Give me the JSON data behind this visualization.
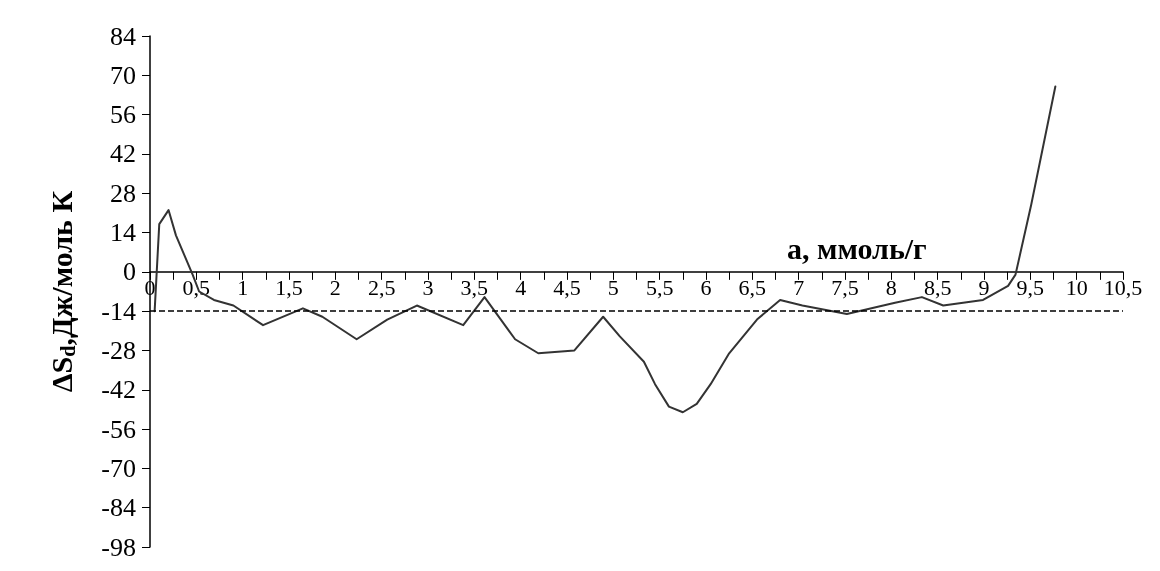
{
  "chart_data": {
    "type": "line",
    "xlabel": "a, ммоль/г",
    "ylabel": "ΔS$_{d}$,Дж/моль К",
    "x": [
      0.05,
      0.1,
      0.2,
      0.28,
      0.46,
      0.53,
      0.69,
      0.9,
      1.22,
      1.65,
      1.86,
      2.23,
      2.56,
      2.88,
      3.38,
      3.61,
      3.94,
      4.19,
      4.58,
      4.89,
      5.07,
      5.33,
      5.45,
      5.6,
      5.75,
      5.9,
      6.05,
      6.25,
      6.55,
      6.8,
      7.04,
      7.52,
      8.04,
      8.33,
      8.56,
      8.99,
      9.26,
      9.34,
      9.51,
      9.77
    ],
    "series": [
      {
        "color": "#333333",
        "values": [
          -14,
          17,
          22,
          13,
          -1,
          -7,
          -10,
          -12,
          -19,
          -13,
          -16,
          -24,
          -17,
          -12,
          -19,
          -9,
          -24,
          -29,
          -28,
          -16,
          -23,
          -32,
          -40,
          -48,
          -50,
          -47,
          -40,
          -29,
          -17,
          -10,
          -12,
          -15,
          -11,
          -9,
          -12,
          -10,
          -5,
          -1,
          24,
          66
        ]
      }
    ],
    "xlim": [
      0,
      10.5
    ],
    "xticks": [
      0,
      {
        "value": 0.25,
        "label": null
      },
      {
        "value": 0.5,
        "label": "0,5"
      },
      {
        "value": 0.75,
        "label": null
      },
      1,
      {
        "value": 1.25,
        "label": null
      },
      {
        "value": 1.5,
        "label": "1,5"
      },
      {
        "value": 1.75,
        "label": null
      },
      2,
      {
        "value": 2.25,
        "label": null
      },
      {
        "value": 2.5,
        "label": "2,5"
      },
      {
        "value": 2.75,
        "label": null
      },
      3,
      {
        "value": 3.25,
        "label": null
      },
      {
        "value": 3.5,
        "label": "3,5"
      },
      {
        "value": 3.75,
        "label": null
      },
      4,
      {
        "value": 4.25,
        "label": null
      },
      {
        "value": 4.5,
        "label": "4,5"
      },
      {
        "value": 4.75,
        "label": null
      },
      5,
      {
        "value": 5.25,
        "label": null
      },
      {
        "value": 5.5,
        "label": "5,5"
      },
      {
        "value": 5.75,
        "label": null
      },
      6,
      {
        "value": 6.25,
        "label": null
      },
      {
        "value": 6.5,
        "label": "6,5"
      },
      {
        "value": 6.75,
        "label": null
      },
      7,
      {
        "value": 7.25,
        "label": null
      },
      {
        "value": 7.5,
        "label": "7,5"
      },
      {
        "value": 7.75,
        "label": null
      },
      8,
      {
        "value": 8.25,
        "label": null
      },
      {
        "value": 8.5,
        "label": "8,5"
      },
      {
        "value": 8.75,
        "label": null
      },
      9,
      {
        "value": 9.25,
        "label": null
      },
      {
        "value": 9.5,
        "label": "9,5"
      },
      {
        "value": 9.75,
        "label": null
      },
      10,
      {
        "value": 10.25,
        "label": null
      },
      {
        "value": 10.5,
        "label": "10,5"
      }
    ],
    "ylim": [
      -98,
      84
    ],
    "yticks": [
      -98,
      -84,
      -70,
      -56,
      -42,
      -28,
      -14,
      0,
      14,
      28,
      42,
      56,
      70,
      84
    ],
    "ref_lines": [
      {
        "axis": "y",
        "value": -14,
        "color": "#000000",
        "line_style": "dashed"
      }
    ],
    "grid": false,
    "marker": "none",
    "line_style": "solid"
  }
}
